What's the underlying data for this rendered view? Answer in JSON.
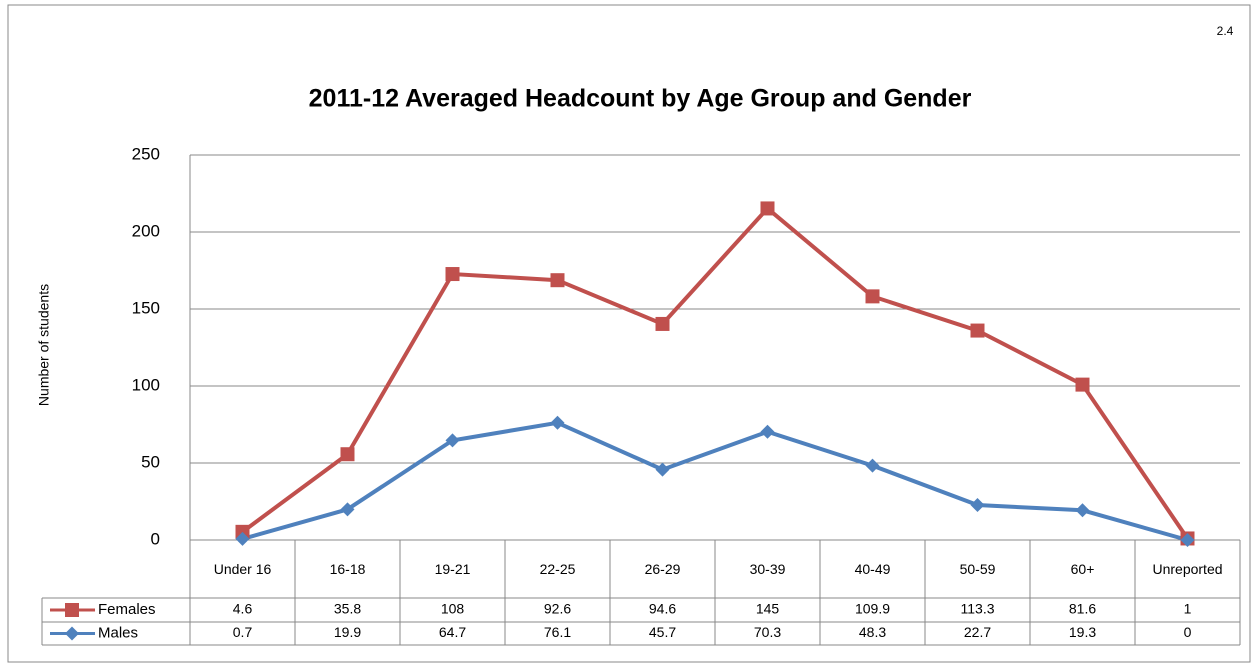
{
  "chart_data": {
    "type": "line",
    "stacked": true,
    "page_number": "2.4",
    "title": "2011-12 Averaged Headcount by Age Group and Gender",
    "y_label": "Number of students",
    "categories": [
      "Under 16",
      "16-18",
      "19-21",
      "22-25",
      "26-29",
      "30-39",
      "40-49",
      "50-59",
      "60+",
      "Unreported"
    ],
    "series": [
      {
        "name": "Females",
        "color": "#c0504d",
        "marker": "square",
        "values": [
          4.6,
          35.8,
          108,
          92.6,
          94.6,
          145,
          109.9,
          113.3,
          81.6,
          1
        ]
      },
      {
        "name": "Males",
        "color": "#4f81bd",
        "marker": "diamond",
        "values": [
          0.7,
          19.9,
          64.7,
          76.1,
          45.7,
          70.3,
          48.3,
          22.7,
          19.3,
          0
        ]
      }
    ],
    "ylim": [
      0,
      250
    ],
    "yticks": [
      0,
      50,
      100,
      150,
      200,
      250
    ],
    "grid": true,
    "data_table": true
  }
}
